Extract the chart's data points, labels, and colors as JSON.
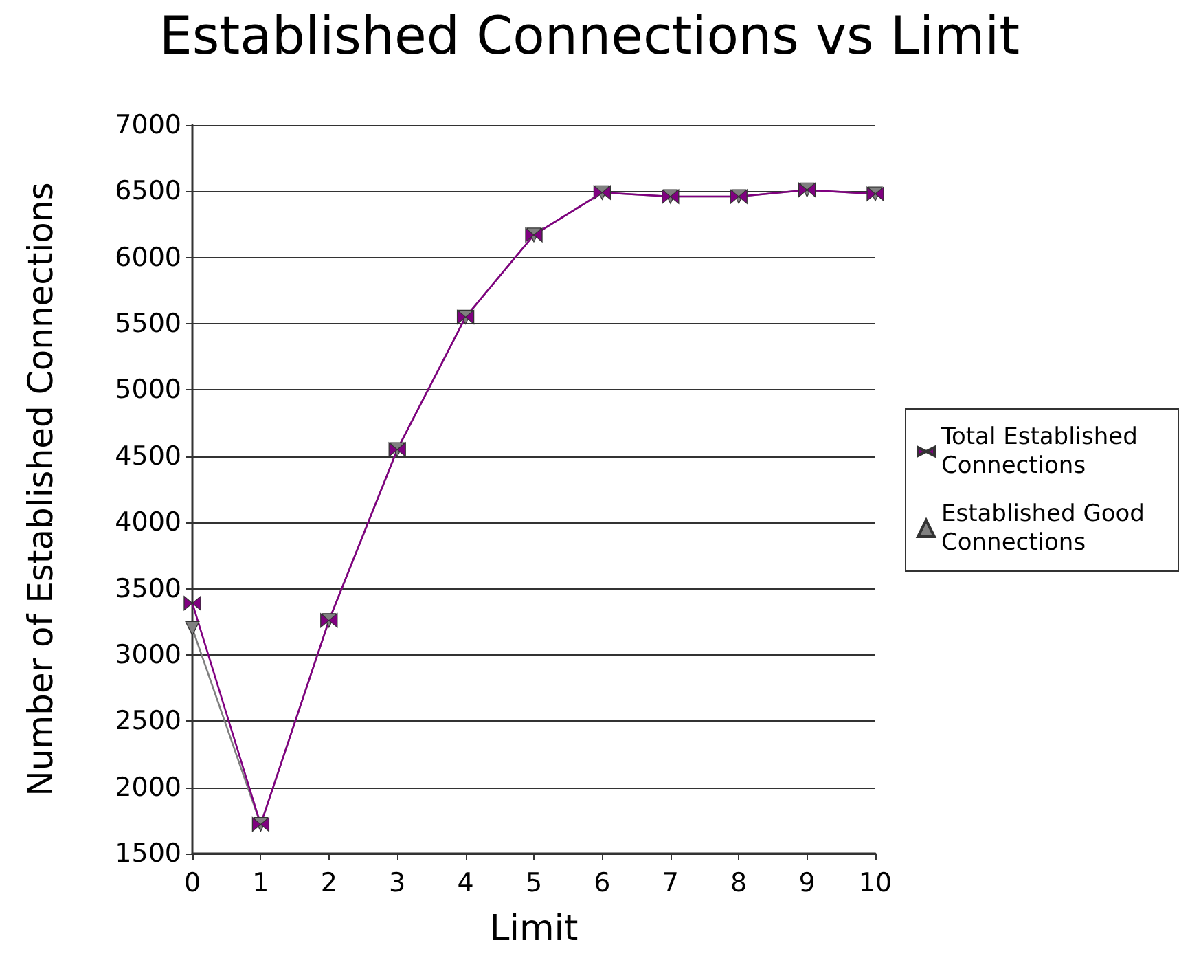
{
  "chart_data": {
    "type": "line",
    "title": "Established Connections vs Limit",
    "xlabel": "Limit",
    "ylabel": "Number of Established Connections",
    "x": [
      0,
      1,
      2,
      3,
      4,
      5,
      6,
      7,
      8,
      9,
      10
    ],
    "xlim": [
      0,
      10
    ],
    "xticks": [
      0,
      1,
      2,
      3,
      4,
      5,
      6,
      7,
      8,
      9,
      10
    ],
    "ylim": [
      1500,
      7000
    ],
    "yticks": [
      1500,
      2000,
      2500,
      3000,
      3500,
      4000,
      4500,
      5000,
      5500,
      6000,
      6500,
      7000
    ],
    "grid": "y",
    "legend": "right",
    "line_style": "solid",
    "series": [
      {
        "name": "Established Good Connections",
        "color": "#808080",
        "marker": "triangle",
        "values": [
          3200,
          1720,
          3260,
          4550,
          5550,
          6170,
          6490,
          6460,
          6460,
          6510,
          6480
        ]
      },
      {
        "name": "Total Established Connections",
        "color": "#800080",
        "marker": "cross",
        "values": [
          3390,
          1720,
          3260,
          4550,
          5550,
          6170,
          6490,
          6460,
          6460,
          6510,
          6480
        ]
      }
    ]
  }
}
